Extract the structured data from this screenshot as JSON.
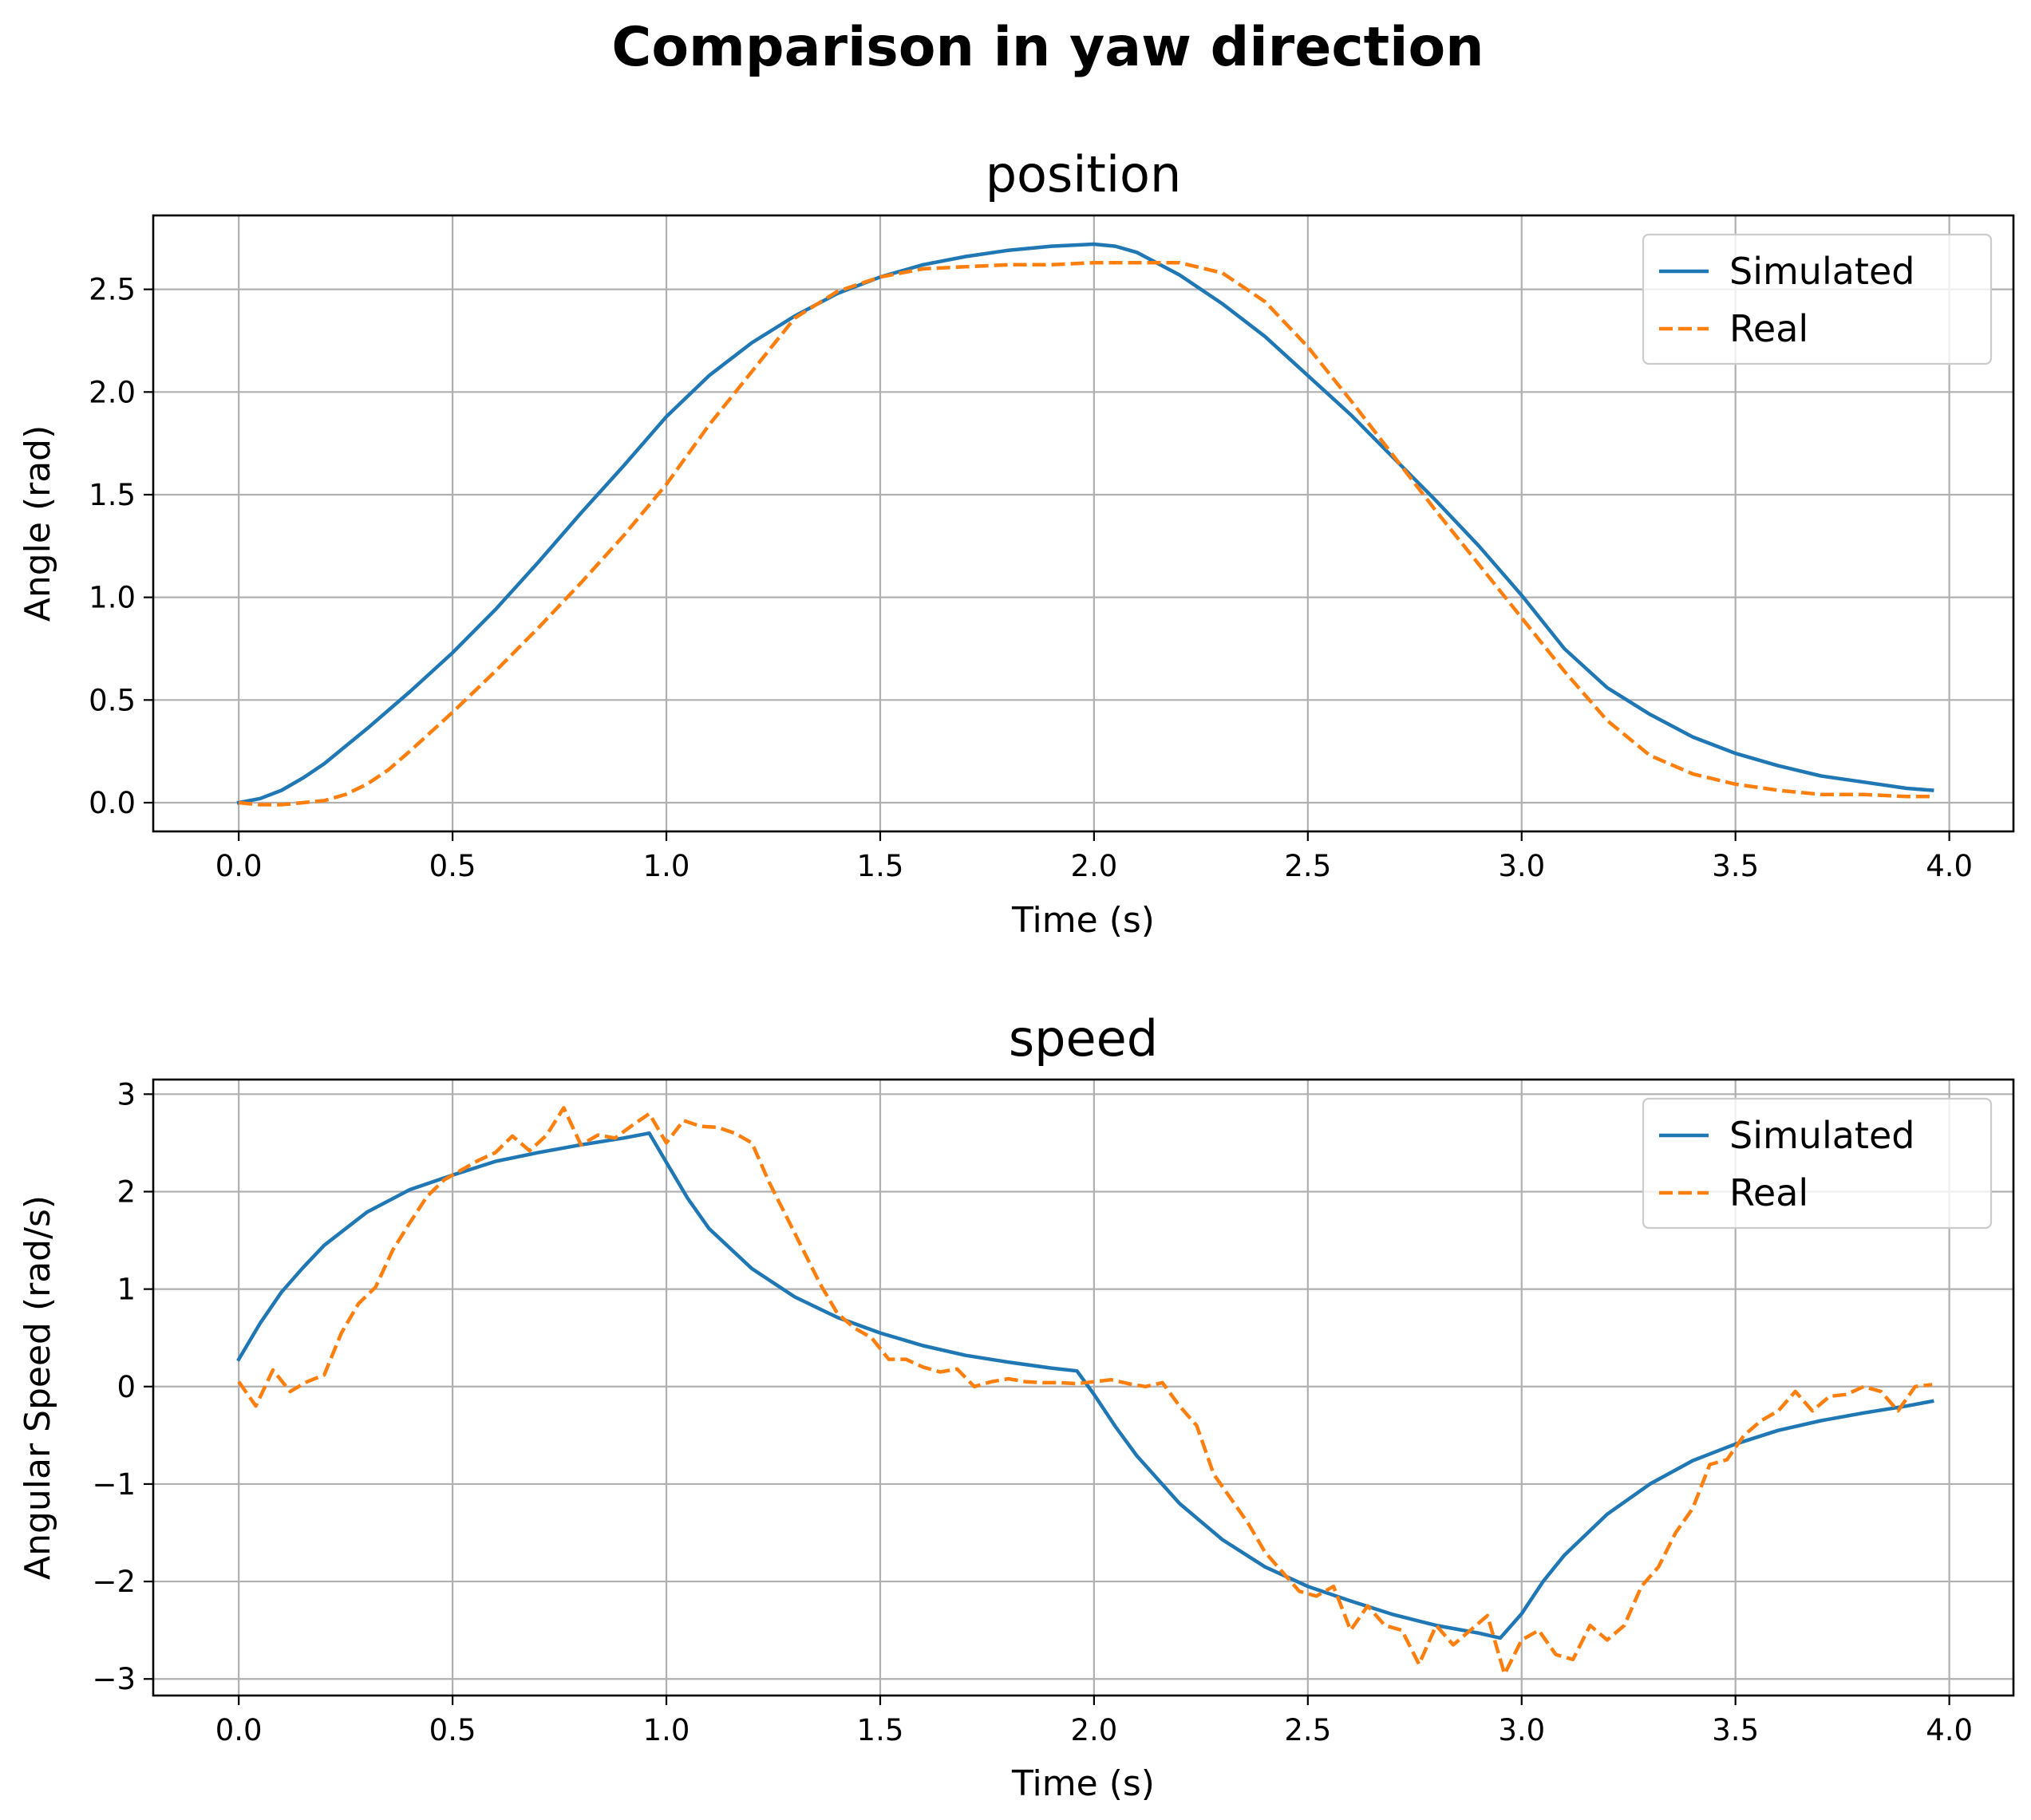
{
  "figure": {
    "suptitle": "Comparison in yaw direction"
  },
  "colors": {
    "simulated": "#1f77b4",
    "real": "#ff7f0e",
    "grid": "#b0b0b0",
    "axes": "#000000"
  },
  "chart_data": [
    {
      "type": "line",
      "title": "position",
      "xlabel": "Time (s)",
      "ylabel": "Angle (rad)",
      "xlim": [
        -0.2,
        4.15
      ],
      "ylim": [
        -0.14,
        2.86
      ],
      "xticks": [
        0.0,
        0.5,
        1.0,
        1.5,
        2.0,
        2.5,
        3.0,
        3.5,
        4.0
      ],
      "xtick_labels": [
        "0.0",
        "0.5",
        "1.0",
        "1.5",
        "2.0",
        "2.5",
        "3.0",
        "3.5",
        "4.0"
      ],
      "yticks": [
        0.0,
        0.5,
        1.0,
        1.5,
        2.0,
        2.5
      ],
      "ytick_labels": [
        "0.0",
        "0.5",
        "1.0",
        "1.5",
        "2.0",
        "2.5"
      ],
      "grid": true,
      "legend": "top-right",
      "series": [
        {
          "name": "Simulated",
          "style": "solid",
          "x": [
            0.0,
            0.05,
            0.1,
            0.15,
            0.2,
            0.3,
            0.4,
            0.5,
            0.6,
            0.7,
            0.8,
            0.9,
            1.0,
            1.1,
            1.2,
            1.3,
            1.4,
            1.5,
            1.6,
            1.7,
            1.8,
            1.9,
            2.0,
            2.05,
            2.1,
            2.2,
            2.3,
            2.4,
            2.5,
            2.6,
            2.7,
            2.8,
            2.9,
            3.0,
            3.1,
            3.2,
            3.3,
            3.4,
            3.5,
            3.6,
            3.7,
            3.8,
            3.9,
            3.96
          ],
          "y": [
            0.0,
            0.02,
            0.06,
            0.12,
            0.19,
            0.36,
            0.54,
            0.73,
            0.94,
            1.17,
            1.41,
            1.64,
            1.88,
            2.08,
            2.24,
            2.37,
            2.48,
            2.56,
            2.62,
            2.66,
            2.69,
            2.71,
            2.72,
            2.71,
            2.68,
            2.57,
            2.43,
            2.27,
            2.08,
            1.89,
            1.68,
            1.47,
            1.25,
            1.01,
            0.75,
            0.56,
            0.43,
            0.32,
            0.24,
            0.18,
            0.13,
            0.1,
            0.07,
            0.06
          ]
        },
        {
          "name": "Real",
          "style": "dashed",
          "x": [
            0.0,
            0.05,
            0.1,
            0.15,
            0.2,
            0.25,
            0.3,
            0.35,
            0.4,
            0.5,
            0.6,
            0.7,
            0.8,
            0.9,
            1.0,
            1.1,
            1.2,
            1.3,
            1.4,
            1.5,
            1.6,
            1.7,
            1.8,
            1.9,
            2.0,
            2.1,
            2.2,
            2.3,
            2.4,
            2.5,
            2.6,
            2.7,
            2.8,
            2.9,
            3.0,
            3.1,
            3.2,
            3.3,
            3.4,
            3.5,
            3.6,
            3.7,
            3.8,
            3.9,
            3.96
          ],
          "y": [
            0.0,
            -0.01,
            -0.01,
            0.0,
            0.01,
            0.04,
            0.09,
            0.16,
            0.25,
            0.44,
            0.64,
            0.85,
            1.07,
            1.3,
            1.55,
            1.84,
            2.1,
            2.36,
            2.49,
            2.56,
            2.6,
            2.61,
            2.62,
            2.62,
            2.63,
            2.63,
            2.63,
            2.58,
            2.44,
            2.22,
            1.96,
            1.69,
            1.42,
            1.16,
            0.9,
            0.64,
            0.4,
            0.23,
            0.14,
            0.09,
            0.06,
            0.04,
            0.04,
            0.03,
            0.03
          ]
        }
      ]
    },
    {
      "type": "line",
      "title": "speed",
      "xlabel": "Time (s)",
      "ylabel": "Angular Speed (rad/s)",
      "xlim": [
        -0.2,
        4.15
      ],
      "ylim": [
        -3.17,
        3.15
      ],
      "xticks": [
        0.0,
        0.5,
        1.0,
        1.5,
        2.0,
        2.5,
        3.0,
        3.5,
        4.0
      ],
      "xtick_labels": [
        "0.0",
        "0.5",
        "1.0",
        "1.5",
        "2.0",
        "2.5",
        "3.0",
        "3.5",
        "4.0"
      ],
      "yticks": [
        -3,
        -2,
        -1,
        0,
        1,
        2,
        3
      ],
      "ytick_labels": [
        "−3",
        "−2",
        "−1",
        "0",
        "1",
        "2",
        "3"
      ],
      "grid": true,
      "legend": "top-right",
      "series": [
        {
          "name": "Simulated",
          "style": "solid",
          "x": [
            0.0,
            0.05,
            0.1,
            0.15,
            0.2,
            0.3,
            0.4,
            0.5,
            0.6,
            0.7,
            0.8,
            0.9,
            0.96,
            1.0,
            1.05,
            1.1,
            1.2,
            1.3,
            1.4,
            1.5,
            1.6,
            1.7,
            1.8,
            1.9,
            1.96,
            2.0,
            2.05,
            2.1,
            2.2,
            2.3,
            2.4,
            2.5,
            2.6,
            2.7,
            2.8,
            2.9,
            2.95,
            3.0,
            3.05,
            3.1,
            3.2,
            3.3,
            3.4,
            3.5,
            3.6,
            3.7,
            3.8,
            3.9,
            3.96
          ],
          "y": [
            0.28,
            0.65,
            0.97,
            1.22,
            1.45,
            1.79,
            2.02,
            2.17,
            2.31,
            2.4,
            2.48,
            2.55,
            2.6,
            2.3,
            1.93,
            1.62,
            1.21,
            0.92,
            0.71,
            0.55,
            0.42,
            0.32,
            0.25,
            0.19,
            0.16,
            -0.08,
            -0.41,
            -0.71,
            -1.2,
            -1.57,
            -1.85,
            -2.05,
            -2.2,
            -2.34,
            -2.45,
            -2.53,
            -2.58,
            -2.33,
            -2.0,
            -1.73,
            -1.31,
            -1.0,
            -0.76,
            -0.59,
            -0.45,
            -0.35,
            -0.27,
            -0.2,
            -0.15
          ]
        },
        {
          "name": "Real",
          "style": "dashed",
          "x": [
            0.0,
            0.04,
            0.08,
            0.12,
            0.16,
            0.2,
            0.24,
            0.28,
            0.32,
            0.36,
            0.4,
            0.44,
            0.48,
            0.52,
            0.56,
            0.6,
            0.64,
            0.68,
            0.72,
            0.76,
            0.8,
            0.84,
            0.88,
            0.92,
            0.96,
            1.0,
            1.04,
            1.08,
            1.12,
            1.16,
            1.2,
            1.24,
            1.28,
            1.32,
            1.36,
            1.4,
            1.44,
            1.48,
            1.52,
            1.56,
            1.6,
            1.64,
            1.68,
            1.72,
            1.76,
            1.8,
            1.84,
            1.88,
            1.92,
            1.96,
            2.0,
            2.04,
            2.08,
            2.12,
            2.16,
            2.2,
            2.24,
            2.28,
            2.32,
            2.36,
            2.4,
            2.44,
            2.48,
            2.52,
            2.56,
            2.6,
            2.64,
            2.68,
            2.72,
            2.76,
            2.8,
            2.84,
            2.88,
            2.92,
            2.96,
            3.0,
            3.04,
            3.08,
            3.12,
            3.16,
            3.2,
            3.24,
            3.28,
            3.32,
            3.36,
            3.4,
            3.44,
            3.48,
            3.52,
            3.56,
            3.6,
            3.64,
            3.68,
            3.72,
            3.76,
            3.8,
            3.84,
            3.88,
            3.92,
            3.96
          ],
          "y": [
            0.05,
            -0.2,
            0.17,
            -0.05,
            0.05,
            0.12,
            0.55,
            0.85,
            1.02,
            1.4,
            1.68,
            1.95,
            2.12,
            2.22,
            2.32,
            2.4,
            2.57,
            2.42,
            2.58,
            2.86,
            2.48,
            2.58,
            2.55,
            2.68,
            2.8,
            2.5,
            2.73,
            2.67,
            2.66,
            2.6,
            2.5,
            2.1,
            1.75,
            1.4,
            1.05,
            0.75,
            0.6,
            0.5,
            0.28,
            0.28,
            0.2,
            0.15,
            0.18,
            0.0,
            0.05,
            0.08,
            0.05,
            0.04,
            0.04,
            0.03,
            0.05,
            0.07,
            0.03,
            0.0,
            0.04,
            -0.2,
            -0.4,
            -0.9,
            -1.15,
            -1.4,
            -1.7,
            -1.9,
            -2.1,
            -2.15,
            -2.05,
            -2.5,
            -2.25,
            -2.45,
            -2.5,
            -2.85,
            -2.45,
            -2.65,
            -2.5,
            -2.35,
            -2.95,
            -2.6,
            -2.5,
            -2.75,
            -2.8,
            -2.45,
            -2.6,
            -2.45,
            -2.05,
            -1.85,
            -1.5,
            -1.25,
            -0.8,
            -0.75,
            -0.5,
            -0.35,
            -0.25,
            -0.05,
            -0.25,
            -0.1,
            -0.08,
            0.0,
            -0.05,
            -0.25,
            0.0,
            0.02
          ]
        }
      ]
    }
  ]
}
